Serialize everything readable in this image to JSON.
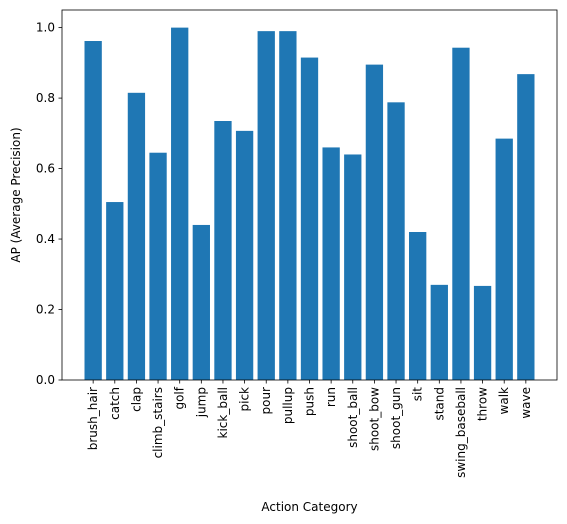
{
  "chart_data": {
    "type": "bar",
    "xlabel": "Action Category",
    "ylabel": "AP (Average Precision)",
    "ylim": [
      0,
      1.05
    ],
    "yticks": [
      0.0,
      0.2,
      0.4,
      0.6,
      0.8,
      1.0
    ],
    "ytick_labels": [
      "0.0",
      "0.2",
      "0.4",
      "0.6",
      "0.8",
      "1.0"
    ],
    "bar_color": "#1f77b4",
    "grid": false,
    "categories": [
      "brush_hair",
      "catch",
      "clap",
      "climb_stairs",
      "golf",
      "jump",
      "kick_ball",
      "pick",
      "pour",
      "pullup",
      "push",
      "run",
      "shoot_ball",
      "shoot_bow",
      "shoot_gun",
      "sit",
      "stand",
      "swing_baseball",
      "throw",
      "walk",
      "wave"
    ],
    "values": [
      0.962,
      0.505,
      0.815,
      0.645,
      1.0,
      0.44,
      0.735,
      0.707,
      0.99,
      0.99,
      0.915,
      0.66,
      0.64,
      0.895,
      0.788,
      0.42,
      0.27,
      0.943,
      0.267,
      0.685,
      0.868
    ]
  }
}
